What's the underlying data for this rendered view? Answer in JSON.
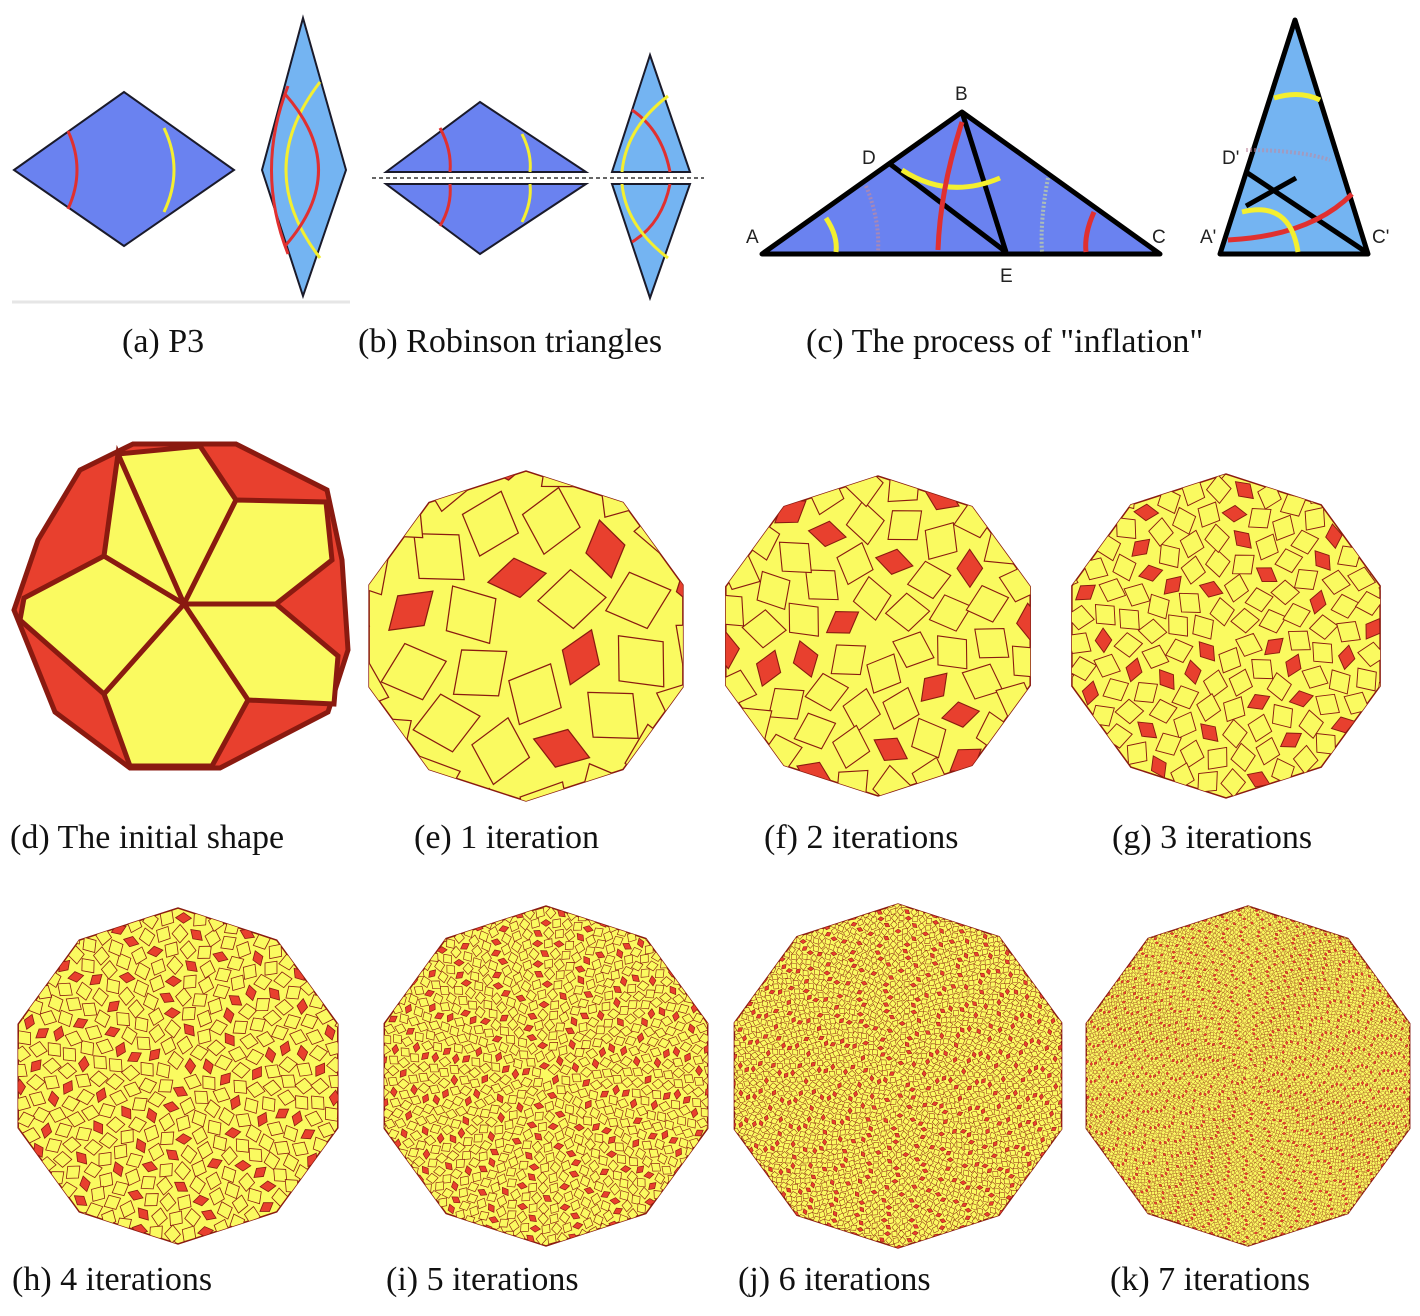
{
  "captions": {
    "a": "(a) P3",
    "b": "(b) Robinson triangles",
    "c": "(c) The process of \"inflation\"",
    "d": "(d) The initial shape",
    "e": "(e) 1 iteration",
    "f": "(f) 2 iterations",
    "g": "(g) 3 iterations",
    "h": "(h) 4 iterations",
    "i": "(i) 5 iterations",
    "j": "(j) 6 iterations",
    "k": "(k) 7 iterations"
  },
  "inflation_labels": {
    "left": [
      "A",
      "B",
      "C",
      "D",
      "E"
    ],
    "right": [
      "D'",
      "A'",
      "C'"
    ]
  },
  "tiling_iterations": [
    0,
    1,
    2,
    3,
    4,
    5,
    6,
    7
  ],
  "colors": {
    "thick_rhomb": "#6a82f0",
    "thin_rhomb": "#74b4f2",
    "arc_red": "#e03030",
    "arc_yellow": "#f4ef30",
    "tile_yellow": "#fafa60",
    "tile_red": "#e8402e",
    "tile_edge": "#8a1a10"
  }
}
